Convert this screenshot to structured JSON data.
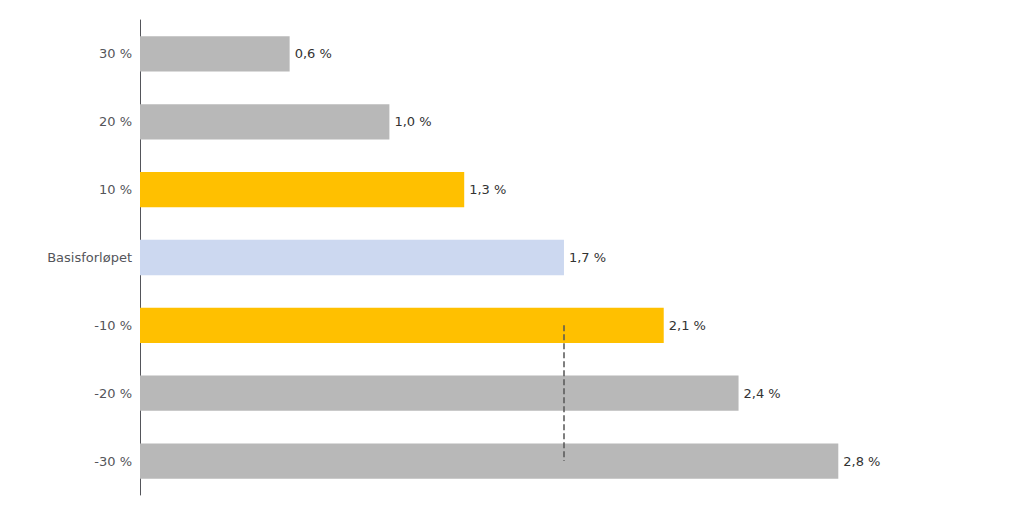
{
  "chart_data": {
    "type": "bar",
    "orientation": "horizontal",
    "categories": [
      "30 %",
      "20 %",
      "10 %",
      "Basisforløpet",
      "-10 %",
      "-20 %",
      "-30 %"
    ],
    "values": [
      0.6,
      1.0,
      1.3,
      1.7,
      2.1,
      2.4,
      2.8
    ],
    "value_labels": [
      "0,6 %",
      "1,0 %",
      "1,3 %",
      "1,7 %",
      "2,1 %",
      "2,4 %",
      "2,8 %"
    ],
    "data_labels": true,
    "colors": [
      "#b8b8b8",
      "#b8b8b8",
      "#FFC000",
      "#ccd8f0",
      "#FFC000",
      "#b8b8b8",
      "#b8b8b8"
    ],
    "xlim": [
      0,
      3.3
    ],
    "xticks": [],
    "tick_labels": "y",
    "grid": false,
    "reference_x": 1.7,
    "line_style": "dashed"
  }
}
